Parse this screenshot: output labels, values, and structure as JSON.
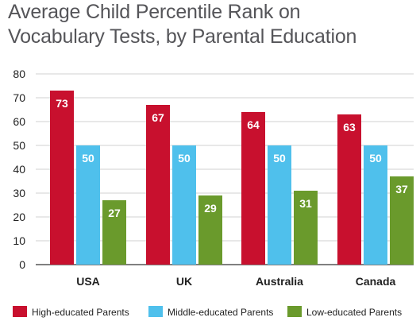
{
  "chart_data": {
    "type": "bar",
    "title_lines": [
      "Average Child Percentile Rank on",
      "Vocabulary Tests, by Parental Education"
    ],
    "categories": [
      "USA",
      "UK",
      "Australia",
      "Canada"
    ],
    "series": [
      {
        "name": "High-educated Parents",
        "color": "#c8102e",
        "values": [
          73,
          67,
          64,
          63
        ]
      },
      {
        "name": "Middle-educated Parents",
        "color": "#4fc0ec",
        "values": [
          50,
          50,
          50,
          50
        ]
      },
      {
        "name": "Low-educated Parents",
        "color": "#6a9a2c",
        "values": [
          27,
          29,
          31,
          37
        ]
      }
    ],
    "y_ticks": [
      "0",
      "10",
      "20",
      "30",
      "40",
      "50",
      "60",
      "70",
      "80"
    ],
    "ylim": [
      0,
      80
    ],
    "xlabel": "",
    "ylabel": "",
    "grid": true,
    "legend_position": "bottom"
  }
}
